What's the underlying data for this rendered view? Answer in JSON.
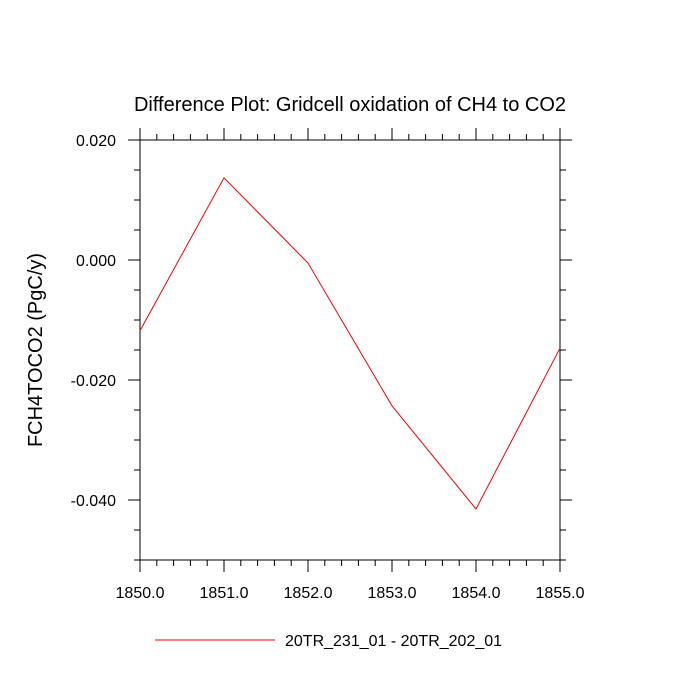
{
  "chart_data": {
    "type": "line",
    "title": "Difference Plot: Gridcell oxidation of CH4 to CO2",
    "xlabel": "",
    "ylabel": "FCH4TOCO2  (PgC/y)",
    "xlim": [
      1850.0,
      1855.0
    ],
    "ylim": [
      -0.05,
      0.02
    ],
    "x_ticks": [
      "1850.0",
      "1851.0",
      "1852.0",
      "1853.0",
      "1854.0",
      "1855.0"
    ],
    "x_tick_values": [
      1850,
      1851,
      1852,
      1853,
      1854,
      1855
    ],
    "y_ticks": [
      "0.020",
      "0.000",
      "-0.020",
      "-0.040"
    ],
    "y_tick_values": [
      0.02,
      0.0,
      -0.02,
      -0.04
    ],
    "grid": false,
    "legend_position": "bottom",
    "series": [
      {
        "name": "20TR_231_01 - 20TR_202_01",
        "color": "#ff0000",
        "x": [
          1850,
          1851,
          1852,
          1853,
          1854,
          1855
        ],
        "y": [
          -0.0118,
          0.0137,
          -0.0005,
          -0.0243,
          -0.0415,
          -0.0147
        ]
      }
    ]
  }
}
